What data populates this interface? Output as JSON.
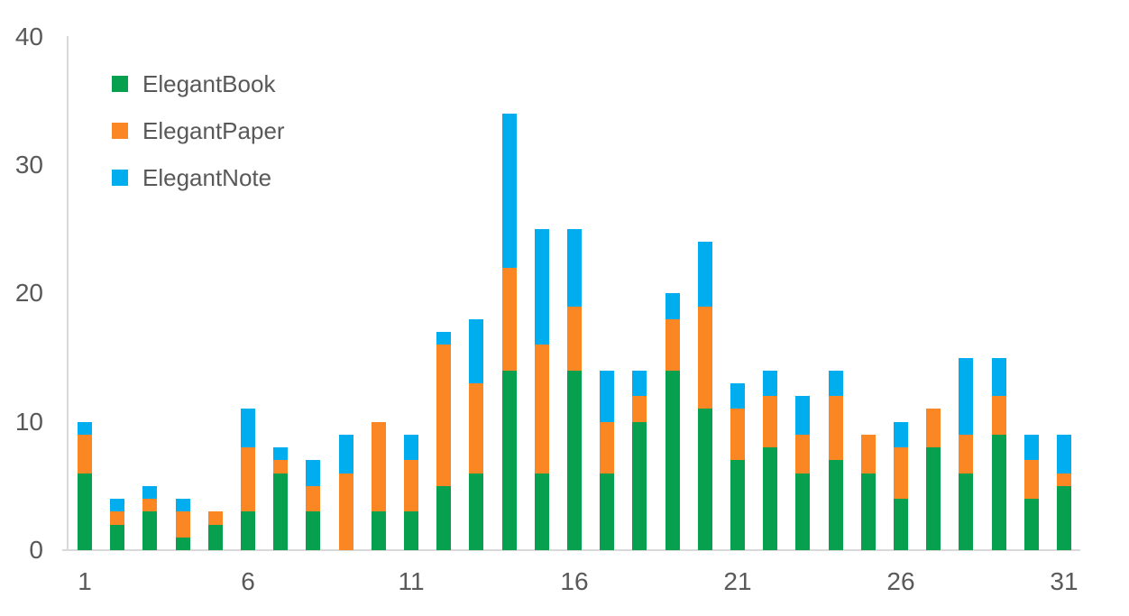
{
  "chart_data": {
    "type": "bar",
    "stacked": true,
    "title": "",
    "xlabel": "",
    "ylabel": "",
    "categories": [
      1,
      2,
      3,
      4,
      5,
      6,
      7,
      8,
      9,
      10,
      11,
      12,
      13,
      14,
      15,
      16,
      17,
      18,
      19,
      20,
      21,
      22,
      23,
      24,
      25,
      26,
      27,
      28,
      29,
      30,
      31
    ],
    "series": [
      {
        "name": "ElegantBook",
        "color": "#06A04F",
        "values": [
          6,
          2,
          3,
          1,
          2,
          3,
          6,
          3,
          0,
          3,
          3,
          5,
          6,
          14,
          6,
          14,
          6,
          10,
          14,
          11,
          7,
          8,
          6,
          7,
          6,
          4,
          8,
          6,
          9,
          4,
          5
        ]
      },
      {
        "name": "ElegantPaper",
        "color": "#FA8723",
        "values": [
          3,
          1,
          1,
          2,
          1,
          5,
          1,
          2,
          6,
          7,
          4,
          11,
          7,
          8,
          10,
          5,
          4,
          2,
          4,
          8,
          4,
          4,
          3,
          5,
          3,
          4,
          3,
          3,
          3,
          3,
          1
        ]
      },
      {
        "name": "ElegantNote",
        "color": "#00AEEF",
        "values": [
          1,
          1,
          1,
          1,
          0,
          3,
          1,
          2,
          3,
          0,
          2,
          1,
          5,
          12,
          9,
          6,
          4,
          2,
          2,
          5,
          2,
          2,
          3,
          2,
          0,
          2,
          0,
          6,
          3,
          2,
          3
        ]
      }
    ],
    "totals": [
      10,
      4,
      5,
      4,
      3,
      11,
      8,
      7,
      9,
      10,
      9,
      17,
      18,
      34,
      25,
      25,
      14,
      14,
      20,
      24,
      13,
      14,
      12,
      14,
      9,
      10,
      11,
      15,
      15,
      9,
      9
    ],
    "ylim": [
      0,
      40
    ],
    "y_ticks": [
      0,
      10,
      20,
      30,
      40
    ],
    "x_tick_positions": [
      1,
      6,
      11,
      16,
      21,
      26,
      31
    ],
    "x_tick_labels": [
      "1",
      "6",
      "11",
      "16",
      "21",
      "26",
      "31"
    ],
    "grid": false,
    "legend_position": "top-left"
  },
  "colors": {
    "axis_line": "#d9d9d9",
    "label_text": "#595959",
    "background": "#ffffff"
  }
}
